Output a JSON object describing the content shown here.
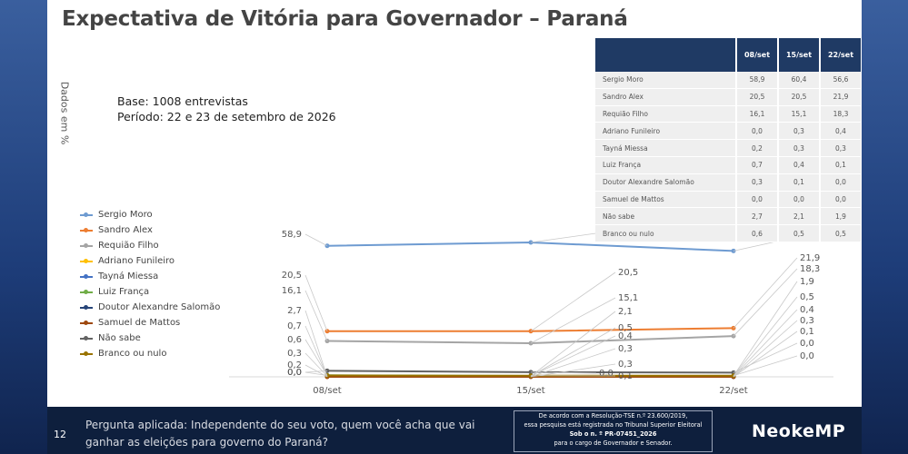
{
  "header": {
    "title": "Expectativa de Vitória para Governador – Paraná",
    "y_axis_note": "Dados em %",
    "base_line": "Base: 1008 entrevistas",
    "period_line": "Período: 22 e 23 de setembro de 2026"
  },
  "table": {
    "columns": [
      "08/set",
      "15/set",
      "22/set"
    ],
    "rows": [
      {
        "name": "Sergio Moro",
        "values": [
          "58,9",
          "60,4",
          "56,6"
        ]
      },
      {
        "name": "Sandro Alex",
        "values": [
          "20,5",
          "20,5",
          "21,9"
        ]
      },
      {
        "name": "Requião Filho",
        "values": [
          "16,1",
          "15,1",
          "18,3"
        ]
      },
      {
        "name": "Adriano Funileiro",
        "values": [
          "0,0",
          "0,3",
          "0,4"
        ]
      },
      {
        "name": "Tayná Miessa",
        "values": [
          "0,2",
          "0,3",
          "0,3"
        ]
      },
      {
        "name": "Luiz França",
        "values": [
          "0,7",
          "0,4",
          "0,1"
        ]
      },
      {
        "name": "Doutor Alexandre Salomão",
        "values": [
          "0,3",
          "0,1",
          "0,0"
        ]
      },
      {
        "name": "Samuel de Mattos",
        "values": [
          "0,0",
          "0,0",
          "0,0"
        ]
      },
      {
        "name": "Não sabe",
        "values": [
          "2,7",
          "2,1",
          "1,9"
        ]
      },
      {
        "name": "Branco ou nulo",
        "values": [
          "0,6",
          "0,5",
          "0,5"
        ]
      }
    ]
  },
  "chart_data": {
    "type": "line",
    "categories": [
      "08/set",
      "15/set",
      "22/set"
    ],
    "series": [
      {
        "name": "Sergio Moro",
        "color": "#6e9bd1",
        "values": [
          58.9,
          60.4,
          56.6
        ]
      },
      {
        "name": "Sandro Alex",
        "color": "#ed7d31",
        "values": [
          20.5,
          20.5,
          21.9
        ]
      },
      {
        "name": "Requião Filho",
        "color": "#a5a5a5",
        "values": [
          16.1,
          15.1,
          18.3
        ]
      },
      {
        "name": "Adriano Funileiro",
        "color": "#ffc000",
        "values": [
          0.0,
          0.3,
          0.4
        ]
      },
      {
        "name": "Tayná Miessa",
        "color": "#4472c4",
        "values": [
          0.2,
          0.3,
          0.3
        ]
      },
      {
        "name": "Luiz França",
        "color": "#70ad47",
        "values": [
          0.7,
          0.4,
          0.1
        ]
      },
      {
        "name": "Doutor Alexandre Salomão",
        "color": "#264478",
        "values": [
          0.3,
          0.1,
          0.0
        ]
      },
      {
        "name": "Samuel de Mattos",
        "color": "#9e480e",
        "values": [
          0.0,
          0.0,
          0.0
        ]
      },
      {
        "name": "Não sabe",
        "color": "#636363",
        "values": [
          2.7,
          2.1,
          1.9
        ]
      },
      {
        "name": "Branco ou nulo",
        "color": "#997300",
        "values": [
          0.6,
          0.5,
          0.5
        ]
      }
    ],
    "labels": [
      [
        "58,9",
        "20,5",
        "16,1",
        "2,7",
        "0,7",
        "0,6",
        "0,3",
        "0,2",
        "0,0",
        "0,0"
      ],
      [
        "60,4",
        "20,5",
        "15,1",
        "2,1",
        "0,5",
        "0,4",
        "0,3",
        "0,3",
        "0,0",
        "0,1"
      ],
      [
        "56,6",
        "21,9",
        "18,3",
        "1,9",
        "0,5",
        "0,4",
        "0,3",
        "0,1",
        "0,0",
        "0,0"
      ]
    ],
    "ylim": [
      0,
      100
    ]
  },
  "footer": {
    "page_number": "12",
    "question": "Pergunta aplicada: Independente do seu voto, quem você acha que vai ganhar as eleições para governo do Paraná?",
    "legal_line1": "De acordo com a Resolução-TSE n.º 23.600/2019,",
    "legal_line2": "essa pesquisa está registrada no Tribunal Superior Eleitoral",
    "legal_line3": "Sob o n. º PR-07451_2026",
    "legal_line4": "para o cargo de Governador e Senador.",
    "brand": "NeokeMP"
  }
}
